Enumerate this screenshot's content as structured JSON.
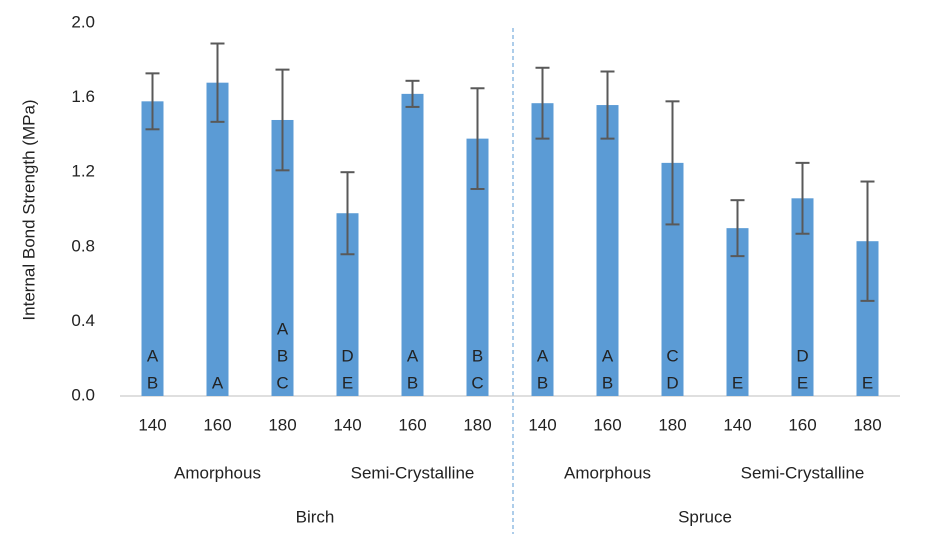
{
  "chart_data": {
    "type": "bar",
    "y_label": "Internal Bond Strength (MPa)",
    "ylim": [
      0,
      2
    ],
    "yticks": [
      {
        "value": 0,
        "label": "0.0"
      },
      {
        "value": 0.4,
        "label": "0.4"
      },
      {
        "value": 0.8,
        "label": "0.8"
      },
      {
        "value": 1.2,
        "label": "1.2"
      },
      {
        "value": 1.6,
        "label": "1.6"
      },
      {
        "value": 2,
        "label": "2.0"
      }
    ],
    "groups": [
      {
        "name": "Birch",
        "subgroups": [
          {
            "name": "Amorphous",
            "categories": [
              "140",
              "160",
              "180"
            ]
          },
          {
            "name": "Semi-Crystalline",
            "categories": [
              "140",
              "160",
              "180"
            ]
          }
        ]
      },
      {
        "name": "Spruce",
        "subgroups": [
          {
            "name": "Amorphous",
            "categories": [
              "140",
              "160",
              "180"
            ]
          },
          {
            "name": "Semi-Crystalline",
            "categories": [
              "140",
              "160",
              "180"
            ]
          }
        ]
      }
    ],
    "series": [
      {
        "color": "#5b9bd5",
        "values": [
          1.58,
          1.68,
          1.48,
          0.98,
          1.62,
          1.38,
          1.57,
          1.56,
          1.25,
          0.9,
          1.06,
          0.83
        ],
        "errors": [
          0.15,
          0.21,
          0.27,
          0.22,
          0.07,
          0.27,
          0.19,
          0.18,
          0.33,
          0.15,
          0.19,
          0.32
        ],
        "error_color": "#595959",
        "letters": [
          [
            "A",
            "B"
          ],
          [
            "A"
          ],
          [
            "A",
            "B",
            "C"
          ],
          [
            "D",
            "E"
          ],
          [
            "A",
            "B"
          ],
          [
            "B",
            "C"
          ],
          [
            "A",
            "B"
          ],
          [
            "A",
            "B"
          ],
          [
            "C",
            "D"
          ],
          [
            "E"
          ],
          [
            "D",
            "E"
          ],
          [
            "E"
          ]
        ]
      }
    ]
  }
}
